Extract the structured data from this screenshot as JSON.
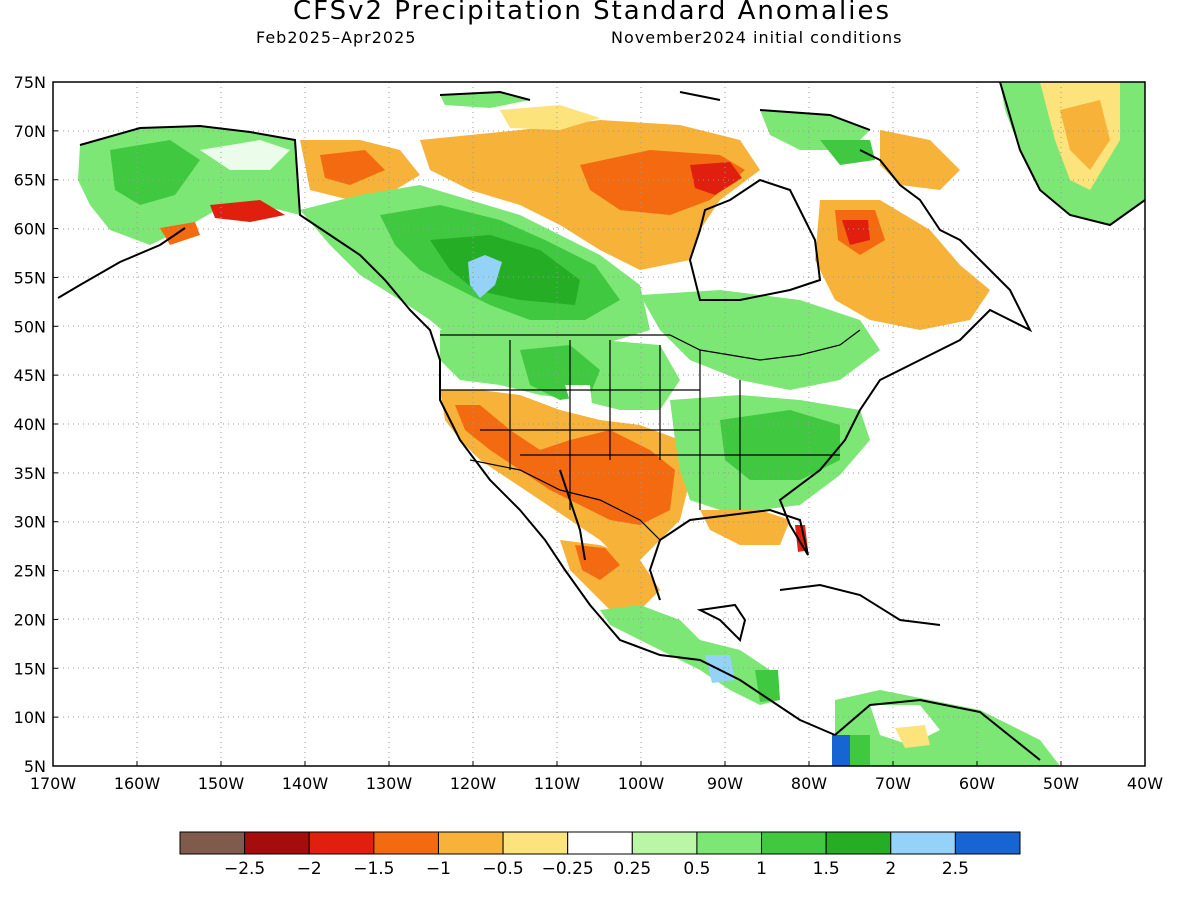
{
  "title": "CFSv2 Precipitation Standard Anomalies",
  "subtitle_left": "Feb2025–Apr2025",
  "subtitle_right": "November2024 initial conditions",
  "map": {
    "lon_range": [
      -170,
      -40
    ],
    "lat_range": [
      5,
      75
    ],
    "lat_labels": [
      "75N",
      "70N",
      "65N",
      "60N",
      "55N",
      "50N",
      "45N",
      "40N",
      "35N",
      "30N",
      "25N",
      "20N",
      "15N",
      "10N",
      "5N"
    ],
    "lon_labels": [
      "170W",
      "160W",
      "150W",
      "140W",
      "130W",
      "120W",
      "110W",
      "100W",
      "90W",
      "80W",
      "70W",
      "60W",
      "50W",
      "40W"
    ],
    "grid": "dotted"
  },
  "colorbar": {
    "colors": [
      "#7f5a4d",
      "#a50d0d",
      "#e01f0e",
      "#f46a10",
      "#f7b23a",
      "#fde37b",
      "#ffffff",
      "#b9f6a5",
      "#7ce775",
      "#40c840",
      "#26ad26",
      "#95d2f7",
      "#1765d2"
    ],
    "labels": [
      "−2.5",
      "−2",
      "−1.5",
      "−1",
      "−0.5",
      "−0.25",
      "0.25",
      "0.5",
      "1",
      "1.5",
      "2",
      "2.5"
    ]
  },
  "regions": [
    {
      "name": "alaska-interior",
      "anomaly": "1 to 2"
    },
    {
      "name": "western-canada",
      "anomaly": "1 to 2"
    },
    {
      "name": "northern-rockies",
      "anomaly": "0.5 to 1.5"
    },
    {
      "name": "southwest-us",
      "anomaly": "-1 to -1.5"
    },
    {
      "name": "southern-plains",
      "anomaly": "-1 to -1.5"
    },
    {
      "name": "ohio-valley",
      "anomaly": "1 to 1.5"
    },
    {
      "name": "hudson-bay-region",
      "anomaly": "-0.5 to -2"
    },
    {
      "name": "labrador",
      "anomaly": "-0.5 to -2"
    },
    {
      "name": "central-america",
      "anomaly": "0.5 to 2.5"
    },
    {
      "name": "greenland",
      "anomaly": "-0.5 to 1"
    }
  ]
}
